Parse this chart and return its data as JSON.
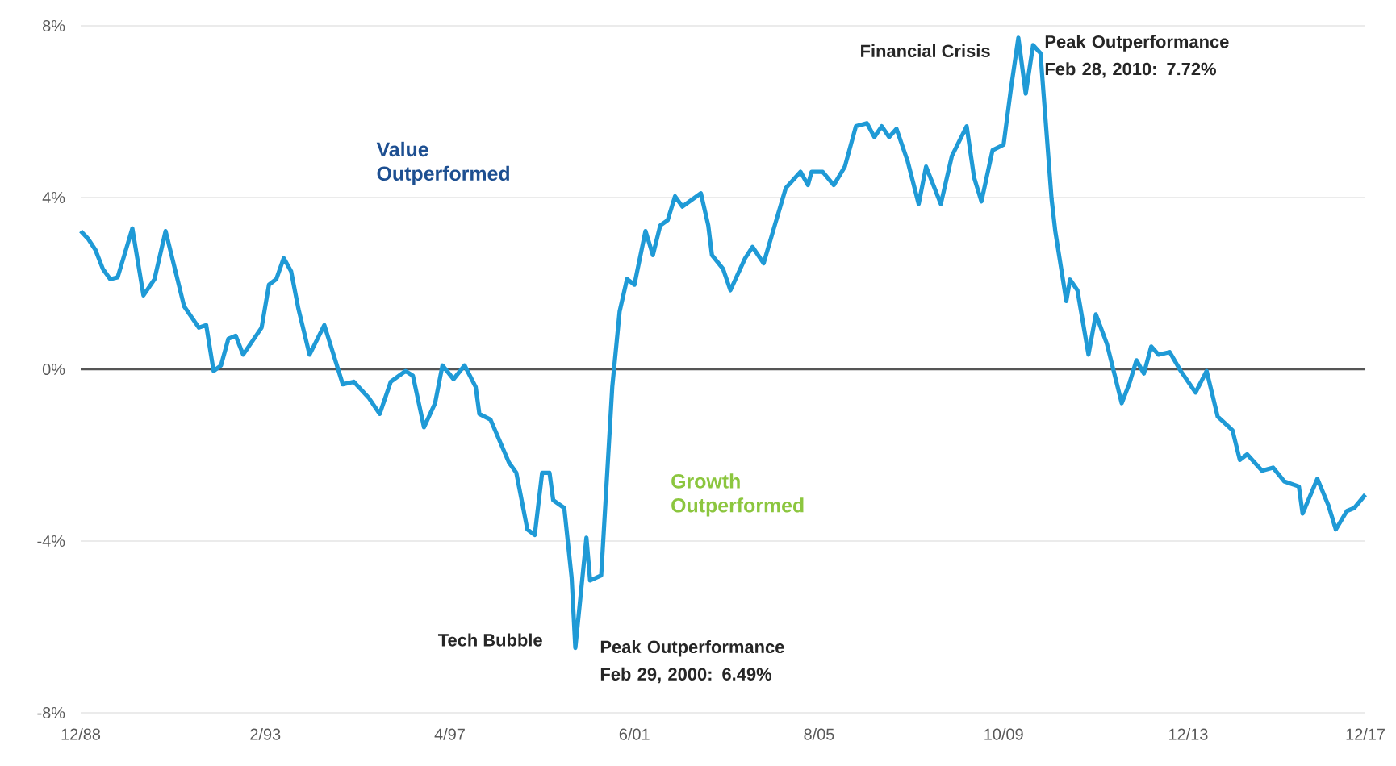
{
  "chart_data": {
    "type": "line",
    "x": [
      "1988-12",
      "1989-02",
      "1989-04",
      "1989-06",
      "1989-08",
      "1989-10",
      "1990-02",
      "1990-05",
      "1990-08",
      "1990-11",
      "1991-04",
      "1991-08",
      "1991-10",
      "1991-12",
      "1992-02",
      "1992-04",
      "1992-06",
      "1992-08",
      "1993-01",
      "1993-03",
      "1993-05",
      "1993-07",
      "1993-09",
      "1993-11",
      "1994-02",
      "1994-06",
      "1994-11",
      "1995-02",
      "1995-06",
      "1995-09",
      "1995-12",
      "1996-04",
      "1996-06",
      "1996-09",
      "1996-12",
      "1997-02",
      "1997-05",
      "1997-08",
      "1997-11",
      "1997-12",
      "1998-03",
      "1998-08",
      "1998-10",
      "1999-01",
      "1999-03",
      "1999-05",
      "1999-07",
      "1999-08",
      "1999-11",
      "2000-01",
      "2000-02",
      "2000-05",
      "2000-06",
      "2000-09",
      "2000-12",
      "2001-02",
      "2001-04",
      "2001-06",
      "2001-09",
      "2001-11",
      "2002-01",
      "2002-03",
      "2002-05",
      "2002-07",
      "2002-12",
      "2003-02",
      "2003-03",
      "2003-06",
      "2003-08",
      "2003-12",
      "2004-02",
      "2004-05",
      "2004-08",
      "2004-11",
      "2005-03",
      "2005-05",
      "2005-06",
      "2005-09",
      "2005-12",
      "2006-03",
      "2006-06",
      "2006-09",
      "2006-11",
      "2007-01",
      "2007-03",
      "2007-05",
      "2007-08",
      "2007-11",
      "2008-01",
      "2008-05",
      "2008-08",
      "2008-12",
      "2009-02",
      "2009-04",
      "2009-07",
      "2009-10",
      "2009-12",
      "2010-02",
      "2010-04",
      "2010-06",
      "2010-08",
      "2010-11",
      "2010-12",
      "2011-03",
      "2011-04",
      "2011-06",
      "2011-09",
      "2011-11",
      "2012-02",
      "2012-06",
      "2012-08",
      "2012-10",
      "2012-12",
      "2013-02",
      "2013-04",
      "2013-07",
      "2013-10",
      "2014-02",
      "2014-05",
      "2014-08",
      "2014-12",
      "2015-02",
      "2015-04",
      "2015-08",
      "2015-11",
      "2016-02",
      "2016-06",
      "2016-07",
      "2016-11",
      "2017-02",
      "2017-04",
      "2017-07",
      "2017-09",
      "2017-12"
    ],
    "values": [
      3.22,
      3.04,
      2.78,
      2.34,
      2.1,
      2.14,
      3.28,
      1.72,
      2.1,
      3.22,
      1.47,
      0.97,
      1.03,
      -0.04,
      0.09,
      0.71,
      0.78,
      0.34,
      0.97,
      1.97,
      2.1,
      2.59,
      2.28,
      1.4,
      0.34,
      1.03,
      -0.35,
      -0.29,
      -0.66,
      -1.04,
      -0.29,
      -0.04,
      -0.15,
      -1.35,
      -0.79,
      0.09,
      -0.23,
      0.09,
      -0.41,
      -1.04,
      -1.17,
      -2.17,
      -2.41,
      -3.73,
      -3.86,
      -2.41,
      -2.41,
      -3.05,
      -3.23,
      -4.86,
      -6.49,
      -3.92,
      -4.92,
      -4.8,
      -0.41,
      1.35,
      2.1,
      1.97,
      3.22,
      2.66,
      3.35,
      3.47,
      4.03,
      3.79,
      4.1,
      3.35,
      2.66,
      2.34,
      1.84,
      2.59,
      2.85,
      2.47,
      3.35,
      4.22,
      4.6,
      4.29,
      4.6,
      4.6,
      4.29,
      4.72,
      5.66,
      5.73,
      5.41,
      5.66,
      5.41,
      5.6,
      4.85,
      3.85,
      4.72,
      3.85,
      4.97,
      5.66,
      4.47,
      3.91,
      5.1,
      5.23,
      6.54,
      7.72,
      6.42,
      7.55,
      7.36,
      3.97,
      3.22,
      1.59,
      2.09,
      1.84,
      0.34,
      1.28,
      0.59,
      -0.79,
      -0.35,
      0.21,
      -0.1,
      0.53,
      0.34,
      0.4,
      -0.04,
      -0.54,
      -0.04,
      -1.1,
      -1.42,
      -2.11,
      -1.98,
      -2.36,
      -2.29,
      -2.61,
      -2.73,
      -3.36,
      -2.55,
      -3.17,
      -3.73,
      -3.3,
      -3.23,
      -2.92
    ],
    "color": "#1f9ad6",
    "xlim": [
      "1988-12",
      "2017-12"
    ],
    "xticks": [
      {
        "value": "1988-12",
        "label": "12/88"
      },
      {
        "value": "1993-02",
        "label": "2/93"
      },
      {
        "value": "1997-04",
        "label": "4/97"
      },
      {
        "value": "2001-06",
        "label": "6/01"
      },
      {
        "value": "2005-08",
        "label": "8/05"
      },
      {
        "value": "2009-10",
        "label": "10/09"
      },
      {
        "value": "2013-12",
        "label": "12/13"
      },
      {
        "value": "2017-12",
        "label": "12/17"
      }
    ],
    "ylim": [
      -8,
      8
    ],
    "yticks": [
      {
        "value": -8,
        "label": "-8%"
      },
      {
        "value": -4,
        "label": "-4%"
      },
      {
        "value": 0,
        "label": "0%"
      },
      {
        "value": 4,
        "label": "4%"
      },
      {
        "value": 8,
        "label": "8%"
      }
    ],
    "grid": "y",
    "ref_lines": [
      {
        "axis": "y",
        "value": 0,
        "color": "#555555"
      }
    ],
    "annotations": [
      "Value Outperformed",
      "Growth Outperformed",
      {
        "text": "Tech Bubble",
        "x": "2000-02",
        "y": -6.49
      },
      {
        "text": "Peak Outperformance Feb 29, 2000: 6.49%",
        "x": "2000-02",
        "y": -6.49
      },
      {
        "text": "Financial Crisis",
        "x": "2010-02",
        "y": 7.72
      },
      {
        "text": "Peak Outperformance Feb 28, 2010: 7.72%",
        "x": "2010-02",
        "y": 7.72
      }
    ]
  }
}
